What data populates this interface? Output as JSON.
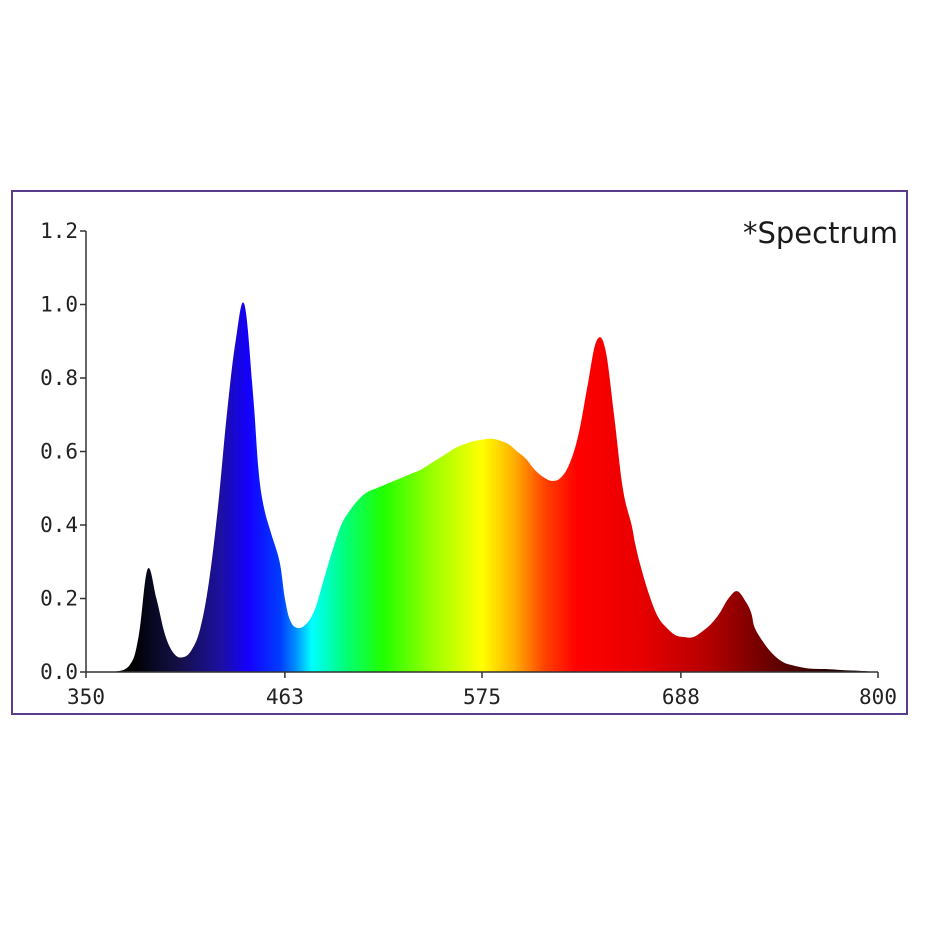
{
  "chart_data": {
    "type": "area",
    "title": "*Spectrum",
    "xlabel": "",
    "ylabel": "",
    "xlim": [
      350,
      800
    ],
    "ylim": [
      0,
      1.2
    ],
    "x_ticks": [
      "350",
      "463",
      "575",
      "688",
      "800"
    ],
    "y_ticks": [
      "0.0",
      "0.2",
      "0.4",
      "0.6",
      "0.8",
      "1.0",
      "1.2"
    ],
    "grid": false,
    "fill": "visible-spectrum gradient",
    "x": [
      350,
      365,
      375,
      380,
      385,
      390,
      395,
      400,
      405,
      410,
      415,
      420,
      425,
      430,
      435,
      440,
      445,
      448,
      451,
      455,
      460,
      463,
      466,
      470,
      475,
      480,
      485,
      490,
      495,
      500,
      505,
      510,
      515,
      520,
      525,
      530,
      535,
      540,
      545,
      550,
      555,
      560,
      565,
      570,
      575,
      580,
      585,
      590,
      595,
      600,
      605,
      610,
      615,
      620,
      625,
      630,
      635,
      640,
      645,
      650,
      655,
      660,
      662,
      665,
      670,
      675,
      680,
      685,
      690,
      695,
      700,
      705,
      710,
      715,
      720,
      725,
      728,
      730,
      735,
      740,
      745,
      750,
      760,
      770,
      780,
      790,
      800
    ],
    "y": [
      0,
      0,
      0.02,
      0.1,
      0.28,
      0.2,
      0.1,
      0.05,
      0.04,
      0.06,
      0.12,
      0.25,
      0.45,
      0.7,
      0.9,
      1.0,
      0.75,
      0.55,
      0.45,
      0.38,
      0.3,
      0.2,
      0.14,
      0.12,
      0.13,
      0.17,
      0.25,
      0.33,
      0.4,
      0.44,
      0.47,
      0.49,
      0.5,
      0.51,
      0.52,
      0.53,
      0.54,
      0.55,
      0.565,
      0.58,
      0.595,
      0.61,
      0.62,
      0.628,
      0.632,
      0.635,
      0.63,
      0.62,
      0.6,
      0.58,
      0.55,
      0.53,
      0.52,
      0.53,
      0.57,
      0.65,
      0.78,
      0.9,
      0.88,
      0.7,
      0.5,
      0.4,
      0.35,
      0.29,
      0.21,
      0.15,
      0.12,
      0.1,
      0.095,
      0.095,
      0.11,
      0.13,
      0.16,
      0.2,
      0.22,
      0.19,
      0.16,
      0.12,
      0.08,
      0.05,
      0.03,
      0.02,
      0.01,
      0.008,
      0.005,
      0.003,
      0
    ]
  },
  "colors": {
    "frame_border": "#5a3d8a",
    "axis": "#333333",
    "text": "#222222"
  }
}
